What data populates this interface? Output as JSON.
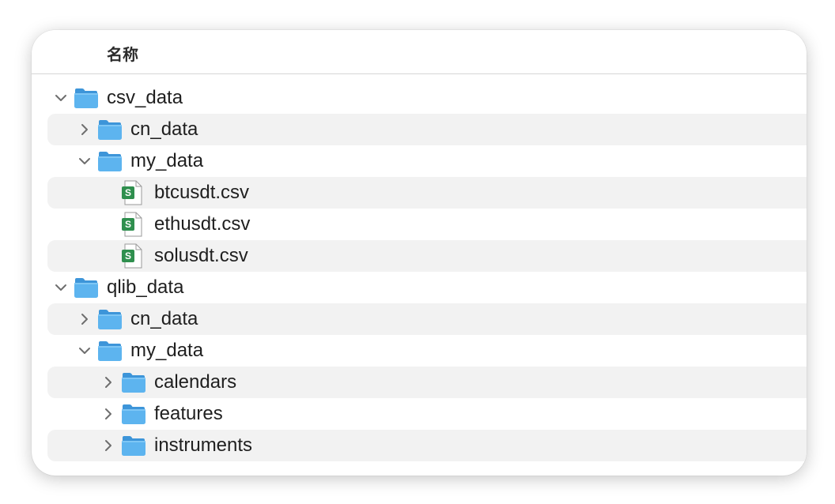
{
  "header": {
    "name_column": "名称"
  },
  "rows": [
    {
      "label": "csv_data",
      "kind": "folder",
      "level": 0,
      "expanded": true,
      "icon": "folder-icon"
    },
    {
      "label": "cn_data",
      "kind": "folder",
      "level": 1,
      "expanded": false,
      "icon": "folder-icon"
    },
    {
      "label": "my_data",
      "kind": "folder",
      "level": 1,
      "expanded": true,
      "icon": "folder-icon"
    },
    {
      "label": "btcusdt.csv",
      "kind": "file",
      "level": 2,
      "icon": "spreadsheet-file-icon",
      "badge": "S"
    },
    {
      "label": "ethusdt.csv",
      "kind": "file",
      "level": 2,
      "icon": "spreadsheet-file-icon",
      "badge": "S"
    },
    {
      "label": "solusdt.csv",
      "kind": "file",
      "level": 2,
      "icon": "spreadsheet-file-icon",
      "badge": "S"
    },
    {
      "label": "qlib_data",
      "kind": "folder",
      "level": 0,
      "expanded": true,
      "icon": "folder-icon"
    },
    {
      "label": "cn_data",
      "kind": "folder",
      "level": 1,
      "expanded": false,
      "icon": "folder-icon"
    },
    {
      "label": "my_data",
      "kind": "folder",
      "level": 1,
      "expanded": true,
      "icon": "folder-icon"
    },
    {
      "label": "calendars",
      "kind": "folder",
      "level": 2,
      "expanded": false,
      "icon": "folder-icon"
    },
    {
      "label": "features",
      "kind": "folder",
      "level": 2,
      "expanded": false,
      "icon": "folder-icon"
    },
    {
      "label": "instruments",
      "kind": "folder",
      "level": 2,
      "expanded": false,
      "icon": "folder-icon"
    }
  ],
  "colors": {
    "folder_front": "#5db4ef",
    "folder_back": "#3d95d9",
    "sheet_badge": "#2f8f4e",
    "row_alt": "#f2f2f2"
  }
}
